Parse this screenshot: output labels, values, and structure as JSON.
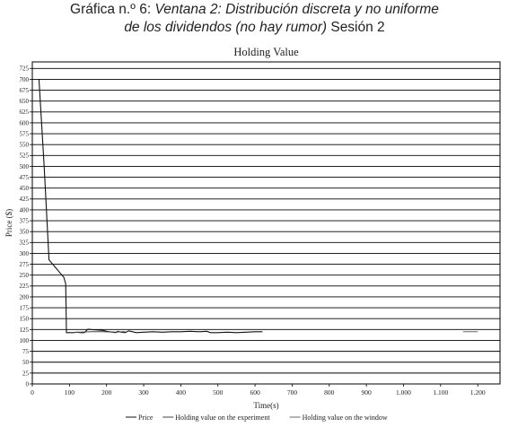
{
  "caption": {
    "line1_prefix": "Gráfica n.º 6: ",
    "line1_italic": "Ventana 2: Distribución discreta y no uniforme",
    "line2_italic": "de los dividendos (no hay rumor)",
    "line2_suffix": " Sesión 2"
  },
  "chart_data": {
    "type": "line",
    "title": "Holding Value",
    "xlabel": "Time(s)",
    "ylabel": "Price ($)",
    "xlim": [
      0,
      1260
    ],
    "ylim": [
      0,
      740
    ],
    "xticks": [
      0,
      100,
      200,
      300,
      400,
      500,
      600,
      700,
      800,
      900,
      1000,
      1100,
      1200
    ],
    "xtick_labels": [
      "0",
      "100",
      "200",
      "300",
      "400",
      "500",
      "600",
      "700",
      "800",
      "900",
      "1.000",
      "1.100",
      "1.200"
    ],
    "yticks": [
      0,
      25,
      50,
      75,
      100,
      125,
      150,
      175,
      200,
      225,
      250,
      275,
      300,
      325,
      350,
      375,
      400,
      425,
      450,
      475,
      500,
      525,
      550,
      575,
      600,
      625,
      650,
      675,
      700,
      725
    ],
    "grid": "horizontal",
    "legend_position": "bottom",
    "series": [
      {
        "name": "Price",
        "color": "#111111",
        "x": [
          18,
          32,
          45,
          60,
          75,
          85,
          90,
          92,
          100,
          110,
          120,
          130,
          140,
          150,
          160,
          175,
          190,
          200,
          225,
          230,
          240,
          250,
          260,
          270,
          280,
          300,
          325,
          350,
          375,
          400,
          425,
          450,
          470,
          480,
          500,
          525,
          550,
          575,
          600,
          610,
          620
        ],
        "values": [
          700,
          500,
          285,
          270,
          255,
          245,
          230,
          118,
          118,
          118,
          119,
          118,
          118,
          126,
          125,
          124,
          123,
          121,
          118,
          121,
          119,
          118,
          122,
          120,
          118,
          119,
          120,
          119,
          120,
          120,
          121,
          120,
          121,
          118,
          118,
          119,
          118,
          119,
          120,
          120,
          120
        ]
      },
      {
        "name": "Holding value on the experiment",
        "color": "#444444",
        "x": [
          100,
          130,
          160,
          190,
          220,
          250
        ],
        "values": [
          118,
          119,
          120,
          120,
          119,
          120
        ]
      },
      {
        "name": "Holding value on the window",
        "color": "#666666",
        "x": [
          1160,
          1200
        ],
        "values": [
          120,
          120
        ]
      }
    ],
    "legend": [
      "Price",
      "Holding value on the experiment",
      "Holding value on the window"
    ]
  }
}
